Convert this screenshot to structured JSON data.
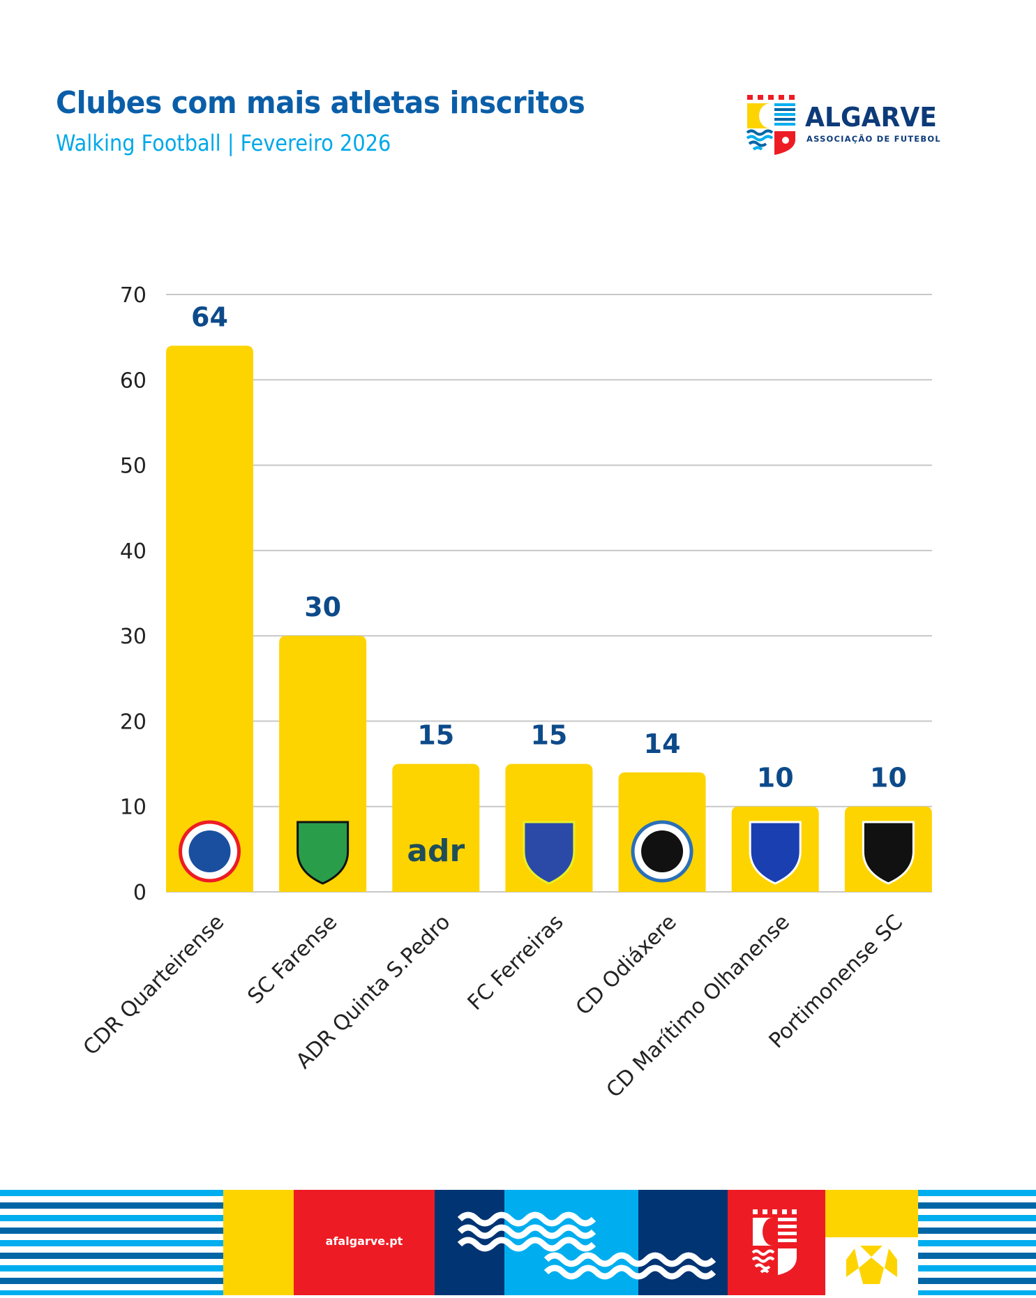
{
  "header": {
    "title": "Clubes com mais atletas inscritos",
    "subtitle": "Walking Football | Fevereiro 2026"
  },
  "logo": {
    "name": "ALGARVE",
    "tagline": "ASSOCIAÇÃO DE FUTEBOL"
  },
  "colors": {
    "bar": "#fdd400",
    "title": "#0a5ea8",
    "subtitle": "#00a8e8",
    "value_label": "#0d4a8a",
    "grid": "#c8c8c8",
    "brand_red": "#ed1c24",
    "brand_navy": "#003473",
    "brand_light_blue": "#00aeef",
    "brand_yellow": "#fdd400"
  },
  "chart_data": {
    "type": "bar",
    "title": "Clubes com mais atletas inscritos",
    "subtitle": "Walking Football | Fevereiro 2026",
    "xlabel": "",
    "ylabel": "",
    "ylim": [
      0,
      70
    ],
    "yticks": [
      0,
      10,
      20,
      30,
      40,
      50,
      60,
      70
    ],
    "grid": true,
    "legend": "none",
    "categories": [
      "CDR Quarteirense",
      "SC Farense",
      "ADR Quinta S.Pedro",
      "FC Ferreiras",
      "CD Odiáxere",
      "CD Marítimo Olhanense",
      "Portimonense SC"
    ],
    "values": [
      64,
      30,
      15,
      15,
      14,
      10,
      10
    ],
    "data_labels": [
      "64",
      "30",
      "15",
      "15",
      "14",
      "10",
      "10"
    ],
    "bar_icons": [
      "cdr-quarteirense-crest-icon",
      "sc-farense-crest-icon",
      "adr-logo-icon",
      "fc-ferreiras-crest-icon",
      "cd-odiaxere-crest-icon",
      "cd-maritimo-olhanense-crest-icon",
      "portimonense-crest-icon"
    ]
  },
  "footer": {
    "url": "afalgarve.pt"
  }
}
